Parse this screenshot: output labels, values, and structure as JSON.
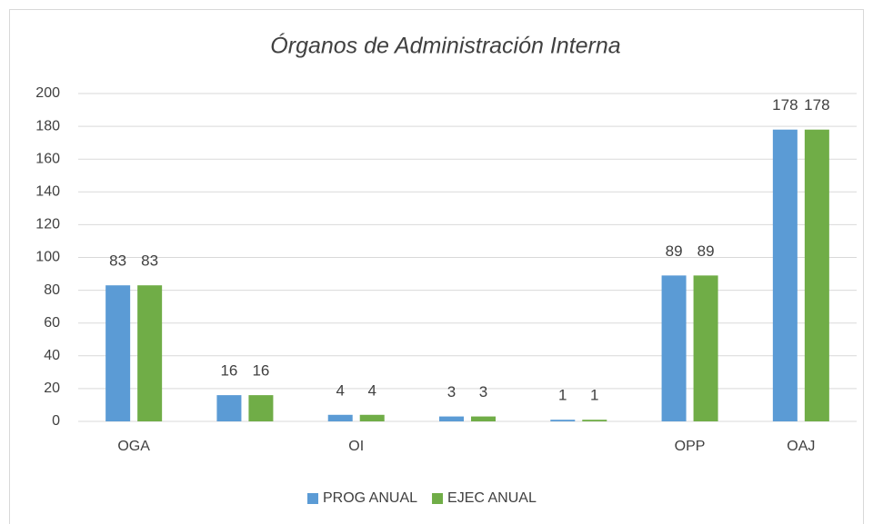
{
  "chart_data": {
    "type": "bar",
    "title": "Órganos de Administración Interna",
    "categories": [
      "OGA",
      null,
      "OI",
      null,
      null,
      "OPP",
      "OAJ"
    ],
    "series": [
      {
        "name": "PROG ANUAL",
        "color": "#5b9bd5",
        "values": [
          83,
          16,
          4,
          3,
          1,
          89,
          178
        ]
      },
      {
        "name": "EJEC ANUAL",
        "color": "#70ad47",
        "values": [
          83,
          16,
          4,
          3,
          1,
          89,
          178
        ]
      }
    ],
    "ylim": [
      0,
      200
    ],
    "yticks": [
      0,
      20,
      40,
      60,
      80,
      100,
      120,
      140,
      160,
      180,
      200
    ],
    "grid": true,
    "legend": "bottom"
  }
}
